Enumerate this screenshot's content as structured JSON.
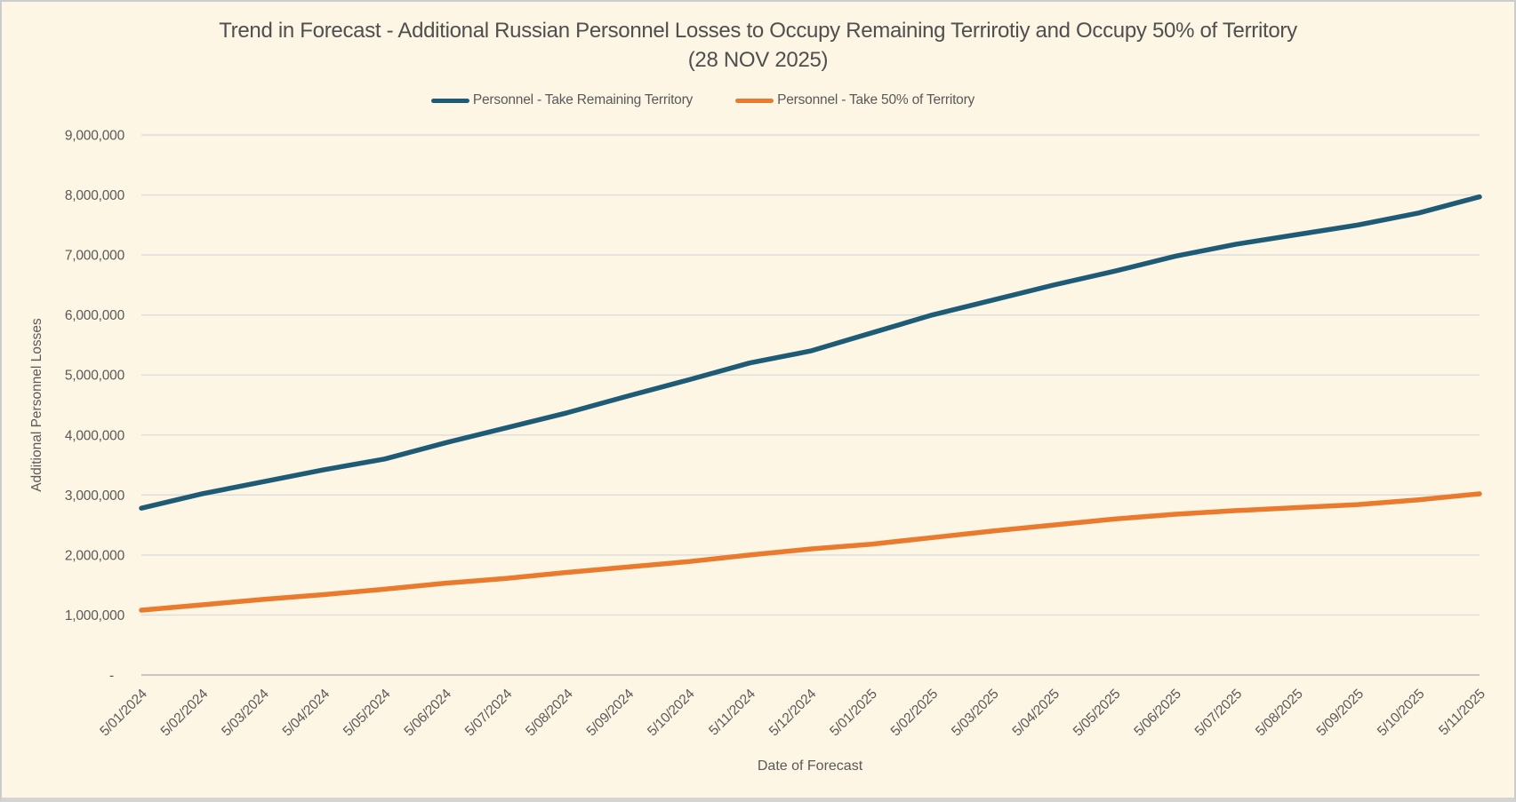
{
  "window": {
    "background_color": "#FDF6E4",
    "frame_color": "#CCCCCC"
  },
  "chart_data": {
    "type": "line",
    "title_line1": "Trend in Forecast - Additional Russian Personnel Losses to Occupy Remaining Terrirotiy and Occupy 50% of Territory",
    "title_line2": "(28 NOV 2025)",
    "xlabel": "Date of Forecast",
    "ylabel": "Additional Personnel Losses",
    "ylim": [
      0,
      9000000
    ],
    "ytick_step": 1000000,
    "ytick_labels": [
      "-",
      "1,000,000",
      "2,000,000",
      "3,000,000",
      "4,000,000",
      "5,000,000",
      "6,000,000",
      "7,000,000",
      "8,000,000",
      "9,000,000"
    ],
    "grid": true,
    "gridline_color": "#DCDCDA",
    "axis_line_color": "#BFBFBF",
    "text_color": "#595959",
    "legend_position": "top",
    "categories": [
      "5/01/2024",
      "5/02/2024",
      "5/03/2024",
      "5/04/2024",
      "5/05/2024",
      "5/06/2024",
      "5/07/2024",
      "5/08/2024",
      "5/09/2024",
      "5/10/2024",
      "5/11/2024",
      "5/12/2024",
      "5/01/2025",
      "5/02/2025",
      "5/03/2025",
      "5/04/2025",
      "5/05/2025",
      "5/06/2025",
      "5/07/2025",
      "5/08/2025",
      "5/09/2025",
      "5/10/2025",
      "5/11/2025"
    ],
    "series": [
      {
        "name": "Personnel - Take Remaining Territory",
        "color": "#1E5B77",
        "values": [
          2780000,
          3020000,
          3220000,
          3420000,
          3600000,
          3870000,
          4120000,
          4370000,
          4650000,
          4920000,
          5200000,
          5400000,
          5700000,
          6000000,
          6250000,
          6500000,
          6730000,
          6980000,
          7180000,
          7340000,
          7500000,
          7700000,
          7970000
        ]
      },
      {
        "name": "Personnel - Take 50% of Territory",
        "color": "#EA7A2E",
        "values": [
          1080000,
          1170000,
          1260000,
          1340000,
          1430000,
          1530000,
          1610000,
          1710000,
          1800000,
          1890000,
          2000000,
          2100000,
          2180000,
          2290000,
          2400000,
          2500000,
          2600000,
          2680000,
          2740000,
          2790000,
          2840000,
          2920000,
          3020000
        ]
      }
    ]
  }
}
